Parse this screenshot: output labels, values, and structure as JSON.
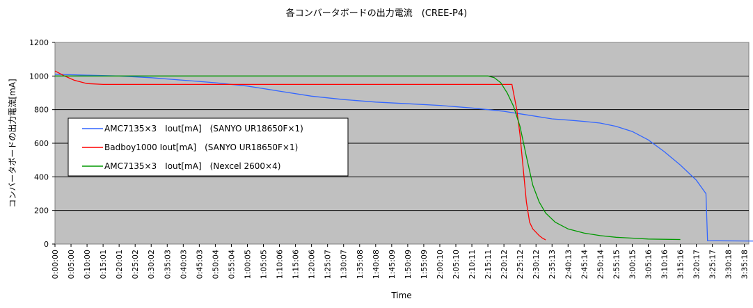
{
  "chart_data": {
    "type": "line",
    "title": "各コンバータボードの出力電流　(CREE-P4)",
    "xlabel": "Time",
    "ylabel": "コンバータボードの出力電流[mA]",
    "ylim": [
      0,
      1200
    ],
    "yticks": [
      0,
      200,
      400,
      600,
      800,
      1000,
      1200
    ],
    "xticks": [
      "0:00:00",
      "0:05:00",
      "0:10:00",
      "0:15:01",
      "0:20:01",
      "0:25:02",
      "0:30:02",
      "0:35:03",
      "0:40:03",
      "0:45:03",
      "0:50:04",
      "0:55:04",
      "1:00:05",
      "1:05:05",
      "1:10:06",
      "1:15:06",
      "1:20:06",
      "1:25:07",
      "1:30:07",
      "1:35:08",
      "1:40:08",
      "1:45:09",
      "1:50:09",
      "1:55:09",
      "2:00:10",
      "2:05:10",
      "2:10:11",
      "2:15:11",
      "2:20:12",
      "2:25:12",
      "2:30:12",
      "2:35:13",
      "2:40:13",
      "2:45:14",
      "2:50:14",
      "2:55:15",
      "3:00:15",
      "3:05:16",
      "3:10:16",
      "3:15:16",
      "3:20:17",
      "3:25:17",
      "3:30:18",
      "3:35:18"
    ],
    "grid": true,
    "legend_position": "left-middle",
    "plot_background": "#c0c0c0",
    "series": [
      {
        "name": "AMC7135×3　Iout[mA]　(SANYO UR18650F×1)",
        "color": "#3366ff",
        "points": [
          [
            0,
            1010
          ],
          [
            10,
            1005
          ],
          [
            20,
            1000
          ],
          [
            30,
            990
          ],
          [
            40,
            975
          ],
          [
            50,
            960
          ],
          [
            60,
            940
          ],
          [
            70,
            910
          ],
          [
            80,
            880
          ],
          [
            90,
            860
          ],
          [
            100,
            845
          ],
          [
            110,
            835
          ],
          [
            120,
            825
          ],
          [
            130,
            810
          ],
          [
            135,
            800
          ],
          [
            140,
            790
          ],
          [
            145,
            775
          ],
          [
            150,
            760
          ],
          [
            155,
            745
          ],
          [
            160,
            738
          ],
          [
            165,
            730
          ],
          [
            170,
            720
          ],
          [
            175,
            700
          ],
          [
            180,
            670
          ],
          [
            185,
            620
          ],
          [
            190,
            550
          ],
          [
            195,
            470
          ],
          [
            200,
            380
          ],
          [
            203,
            300
          ],
          [
            203.5,
            20
          ],
          [
            215,
            18
          ],
          [
            240,
            15
          ],
          [
            260,
            12
          ],
          [
            270,
            10
          ]
        ]
      },
      {
        "name": "Badboy1000 Iout[mA]　(SANYO UR18650F×1)",
        "color": "#ff0000",
        "points": [
          [
            0,
            1030
          ],
          [
            3,
            1000
          ],
          [
            6,
            975
          ],
          [
            10,
            955
          ],
          [
            15,
            950
          ],
          [
            50,
            950
          ],
          [
            100,
            950
          ],
          [
            142,
            950
          ],
          [
            142.5,
            950
          ],
          [
            143,
            900
          ],
          [
            144,
            800
          ],
          [
            145,
            650
          ],
          [
            146,
            450
          ],
          [
            147,
            250
          ],
          [
            148,
            130
          ],
          [
            149,
            90
          ],
          [
            150,
            70
          ],
          [
            151,
            50
          ],
          [
            152,
            35
          ],
          [
            153,
            25
          ]
        ]
      },
      {
        "name": "AMC7135×3　Iout[mA]　(Nexcel 2600×4)",
        "color": "#009900",
        "points": [
          [
            0,
            1000
          ],
          [
            50,
            1000
          ],
          [
            100,
            1000
          ],
          [
            135,
            1000
          ],
          [
            137,
            990
          ],
          [
            139,
            960
          ],
          [
            141,
            900
          ],
          [
            143,
            820
          ],
          [
            145,
            700
          ],
          [
            147,
            520
          ],
          [
            149,
            350
          ],
          [
            151,
            250
          ],
          [
            153,
            185
          ],
          [
            156,
            130
          ],
          [
            160,
            90
          ],
          [
            165,
            65
          ],
          [
            170,
            50
          ],
          [
            175,
            40
          ],
          [
            180,
            35
          ],
          [
            185,
            30
          ],
          [
            190,
            28
          ],
          [
            195,
            27
          ]
        ]
      }
    ]
  }
}
